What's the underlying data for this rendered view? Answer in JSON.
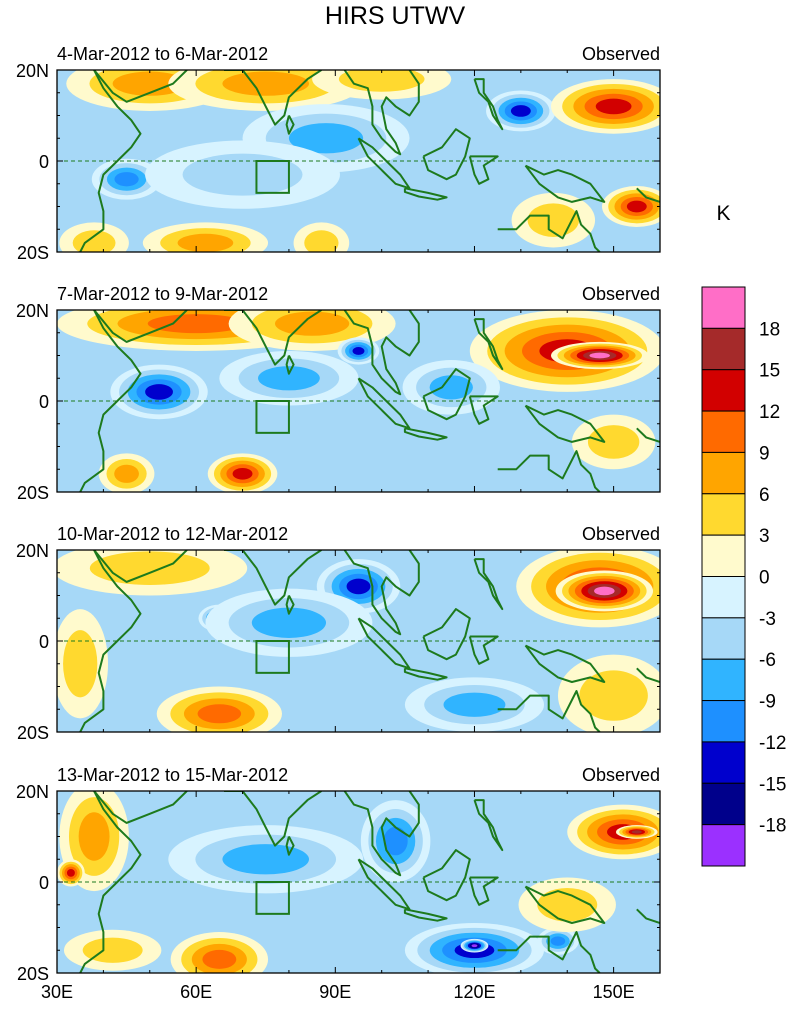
{
  "chart_data": {
    "type": "heatmap",
    "title": "HIRS UTWV",
    "colorbar": {
      "unit": "K",
      "tick_labels": [
        "18",
        "15",
        "12",
        "9",
        "6",
        "3",
        "0",
        "-3",
        "-6",
        "-9",
        "-12",
        "-15",
        "-18"
      ],
      "colors": [
        "#ff6ec7",
        "#a52a2a",
        "#d20000",
        "#ff6a00",
        "#ffa500",
        "#ffd92f",
        "#fffacd",
        "#d7f3ff",
        "#a6d8f7",
        "#30b4ff",
        "#1e90ff",
        "#0000cd",
        "#00008b",
        "#9b30ff"
      ]
    },
    "x_tick_labels": [
      "30E",
      "60E",
      "90E",
      "120E",
      "150E"
    ],
    "x_tick_values": [
      30,
      60,
      90,
      120,
      150
    ],
    "xlim": [
      30,
      160
    ],
    "y_tick_labels": [
      "20N",
      "0",
      "20S"
    ],
    "y_tick_values": [
      20,
      0,
      -20
    ],
    "ylim": [
      -20,
      20
    ],
    "panels": [
      {
        "left_title": "4-Mar-2012 to 6-Mar-2012",
        "right_title": "Observed",
        "features": [
          {
            "lon": 50,
            "lat": 17,
            "value": 9,
            "rx": 12,
            "ry": 4
          },
          {
            "lon": 75,
            "lat": 17,
            "value": 7,
            "rx": 14,
            "ry": 4
          },
          {
            "lon": 100,
            "lat": 18,
            "value": 6,
            "rx": 10,
            "ry": 3
          },
          {
            "lon": 130,
            "lat": 11,
            "value": -15,
            "rx": 5,
            "ry": 3
          },
          {
            "lon": 150,
            "lat": 12,
            "value": 13,
            "rx": 9,
            "ry": 4
          },
          {
            "lon": 155,
            "lat": -10,
            "value": 13,
            "rx": 5,
            "ry": 3
          },
          {
            "lon": 88,
            "lat": 5,
            "value": -8,
            "rx": 12,
            "ry": 5
          },
          {
            "lon": 45,
            "lat": -4,
            "value": -10,
            "rx": 5,
            "ry": 3
          },
          {
            "lon": 70,
            "lat": -3,
            "value": -6,
            "rx": 14,
            "ry": 5
          },
          {
            "lon": 38,
            "lat": -18,
            "value": 6,
            "rx": 5,
            "ry": 3
          },
          {
            "lon": 62,
            "lat": -18,
            "value": 7,
            "rx": 9,
            "ry": 3
          },
          {
            "lon": 87,
            "lat": -18,
            "value": 6,
            "rx": 4,
            "ry": 3
          },
          {
            "lon": 137,
            "lat": -13,
            "value": 4,
            "rx": 6,
            "ry": 4
          }
        ]
      },
      {
        "left_title": "7-Mar-2012 to 9-Mar-2012",
        "right_title": "Observed",
        "features": [
          {
            "lon": 60,
            "lat": 17,
            "value": 10,
            "rx": 20,
            "ry": 4
          },
          {
            "lon": 85,
            "lat": 17,
            "value": 9,
            "rx": 12,
            "ry": 4
          },
          {
            "lon": 140,
            "lat": 11,
            "value": 13,
            "rx": 14,
            "ry": 6
          },
          {
            "lon": 147,
            "lat": 10,
            "value": 19,
            "rx": 7,
            "ry": 2
          },
          {
            "lon": 52,
            "lat": 2,
            "value": -13,
            "rx": 7,
            "ry": 4
          },
          {
            "lon": 95,
            "lat": 11,
            "value": -14,
            "rx": 3,
            "ry": 2
          },
          {
            "lon": 80,
            "lat": 5,
            "value": -7,
            "rx": 10,
            "ry": 4
          },
          {
            "lon": 115,
            "lat": 3,
            "value": -9,
            "rx": 7,
            "ry": 4
          },
          {
            "lon": 70,
            "lat": -16,
            "value": 13,
            "rx": 5,
            "ry": 3
          },
          {
            "lon": 45,
            "lat": -16,
            "value": 9,
            "rx": 4,
            "ry": 3
          },
          {
            "lon": 150,
            "lat": -9,
            "value": 6,
            "rx": 6,
            "ry": 4
          }
        ]
      },
      {
        "left_title": "10-Mar-2012 to 12-Mar-2012",
        "right_title": "Observed",
        "features": [
          {
            "lon": 50,
            "lat": 16,
            "value": 6,
            "rx": 14,
            "ry": 4
          },
          {
            "lon": 95,
            "lat": 12,
            "value": -14,
            "rx": 6,
            "ry": 4
          },
          {
            "lon": 65,
            "lat": 5,
            "value": -13,
            "rx": 3,
            "ry": 2
          },
          {
            "lon": 80,
            "lat": 4,
            "value": -8,
            "rx": 12,
            "ry": 5
          },
          {
            "lon": 147,
            "lat": 12,
            "value": 13,
            "rx": 12,
            "ry": 6
          },
          {
            "lon": 148,
            "lat": 11,
            "value": 19,
            "rx": 7,
            "ry": 3
          },
          {
            "lon": 65,
            "lat": -16,
            "value": 12,
            "rx": 9,
            "ry": 4
          },
          {
            "lon": 117,
            "lat": -15,
            "value": -15,
            "rx": 5,
            "ry": 3
          },
          {
            "lon": 120,
            "lat": -14,
            "value": -9,
            "rx": 10,
            "ry": 4
          },
          {
            "lon": 150,
            "lat": -12,
            "value": 6,
            "rx": 8,
            "ry": 6
          },
          {
            "lon": 35,
            "lat": -5,
            "value": 5,
            "rx": 4,
            "ry": 8
          }
        ]
      },
      {
        "left_title": "13-Mar-2012 to 15-Mar-2012",
        "right_title": "Observed",
        "features": [
          {
            "lon": 38,
            "lat": 10,
            "value": 9,
            "rx": 5,
            "ry": 8
          },
          {
            "lon": 33,
            "lat": 2,
            "value": 14,
            "rx": 2,
            "ry": 2
          },
          {
            "lon": 103,
            "lat": 9,
            "value": -12,
            "rx": 5,
            "ry": 6
          },
          {
            "lon": 75,
            "lat": 5,
            "value": -7,
            "rx": 14,
            "ry": 5
          },
          {
            "lon": 152,
            "lat": 11,
            "value": 14,
            "rx": 8,
            "ry": 4
          },
          {
            "lon": 155,
            "lat": 11,
            "value": 18,
            "rx": 3,
            "ry": 1
          },
          {
            "lon": 65,
            "lat": -17,
            "value": 12,
            "rx": 7,
            "ry": 4
          },
          {
            "lon": 120,
            "lat": -15,
            "value": -14,
            "rx": 10,
            "ry": 4
          },
          {
            "lon": 120,
            "lat": -14,
            "value": -20,
            "rx": 2,
            "ry": 1
          },
          {
            "lon": 138,
            "lat": -13,
            "value": -12,
            "rx": 3,
            "ry": 2
          },
          {
            "lon": 140,
            "lat": -5,
            "value": 4,
            "rx": 7,
            "ry": 4
          },
          {
            "lon": 42,
            "lat": -15,
            "value": 6,
            "rx": 7,
            "ry": 3
          }
        ]
      }
    ]
  }
}
